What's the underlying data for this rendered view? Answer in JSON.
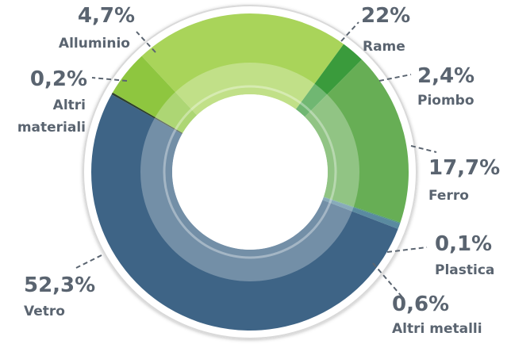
{
  "chart_data": {
    "type": "pie",
    "donut": true,
    "slices": [
      {
        "label": "Rame",
        "value": 22,
        "display": "22%",
        "color": "#a9d45a"
      },
      {
        "label": "Piombo",
        "value": 2.4,
        "display": "2,4%",
        "color": "#3a9b3c"
      },
      {
        "label": "Ferro",
        "value": 17.7,
        "display": "17,7%",
        "color": "#67ae55"
      },
      {
        "label": "Plastica",
        "value": 0.1,
        "display": "0,1%",
        "color": "#4e9a78"
      },
      {
        "label": "Altri metalli",
        "value": 0.6,
        "display": "0,6%",
        "color": "#5a8aa0"
      },
      {
        "label": "Vetro",
        "value": 52.3,
        "display": "52,3%",
        "color": "#3e6486"
      },
      {
        "label": "Altri materiali",
        "value": 0.2,
        "display": "0,2%",
        "color": "#2c3f2a"
      },
      {
        "label": "Alluminio",
        "value": 4.7,
        "display": "4,7%",
        "color": "#8ec63f"
      }
    ]
  }
}
